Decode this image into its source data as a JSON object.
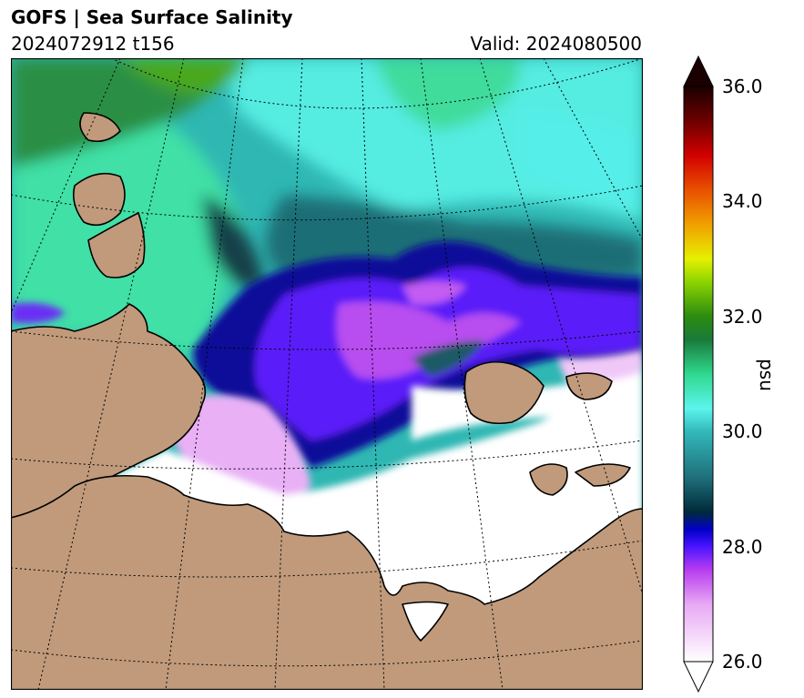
{
  "header": {
    "title": "GOFS  |  Sea Surface Salinity",
    "run": "2024072912 t156",
    "valid": "Valid: 2024080500"
  },
  "map": {
    "type": "polar-stereographic field",
    "variable": "Sea Surface Salinity",
    "units": "psu",
    "land_color": "#c09a7b",
    "grid": "dotted graticule"
  },
  "colorbar": {
    "label": "psu",
    "range": [
      26.0,
      36.0
    ],
    "ticks": [
      "36.0",
      "34.0",
      "32.0",
      "30.0",
      "28.0",
      "26.0"
    ],
    "extend": "both",
    "stops": [
      {
        "value": 26.0,
        "color": "#ffffff"
      },
      {
        "value": 27.0,
        "color": "#e8a8f4"
      },
      {
        "value": 27.6,
        "color": "#b63cf0"
      },
      {
        "value": 28.0,
        "color": "#4a14ff"
      },
      {
        "value": 28.3,
        "color": "#0000c8"
      },
      {
        "value": 28.6,
        "color": "#002a3a"
      },
      {
        "value": 29.2,
        "color": "#1f6f7a"
      },
      {
        "value": 30.0,
        "color": "#33b8bb"
      },
      {
        "value": 30.4,
        "color": "#5cf4ec"
      },
      {
        "value": 31.0,
        "color": "#2fd88f"
      },
      {
        "value": 31.6,
        "color": "#1a7a3a"
      },
      {
        "value": 32.0,
        "color": "#2c8c10"
      },
      {
        "value": 32.6,
        "color": "#8cd400"
      },
      {
        "value": 33.0,
        "color": "#e6f000"
      },
      {
        "value": 33.6,
        "color": "#f0a000"
      },
      {
        "value": 34.2,
        "color": "#e85000"
      },
      {
        "value": 34.8,
        "color": "#d20000"
      },
      {
        "value": 35.4,
        "color": "#6e0000"
      },
      {
        "value": 36.0,
        "color": "#1a0000"
      }
    ]
  }
}
